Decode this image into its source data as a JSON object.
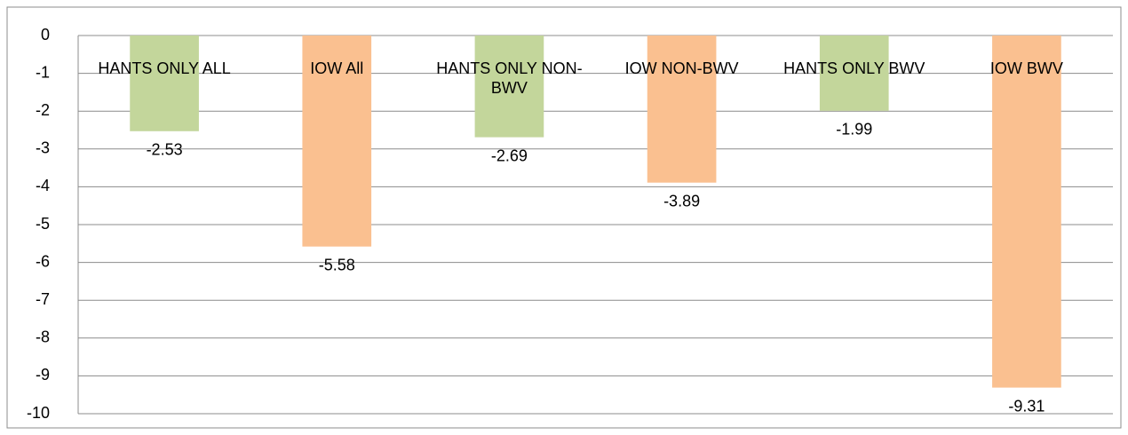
{
  "chart_data": {
    "type": "bar",
    "categories": [
      "HANTS ONLY ALL",
      "IOW All",
      "HANTS ONLY NON-BWV",
      "IOW NON-BWV",
      "HANTS ONLY BWV",
      "IOW BWV"
    ],
    "values": [
      -2.53,
      -5.58,
      -2.69,
      -3.89,
      -1.99,
      -9.31
    ],
    "colors": [
      "#c3d69b",
      "#fac090",
      "#c3d69b",
      "#fac090",
      "#c3d69b",
      "#fac090"
    ],
    "ylim": [
      -10,
      0
    ],
    "yticks": [
      0,
      -1,
      -2,
      -3,
      -4,
      -5,
      -6,
      -7,
      -8,
      -9,
      -10
    ],
    "grid": true
  }
}
